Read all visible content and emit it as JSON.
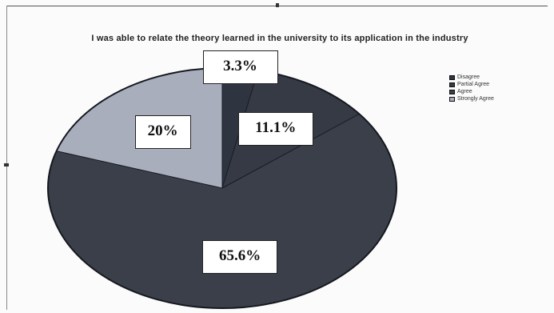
{
  "chart_data": {
    "type": "pie",
    "title": "I was able to relate the theory learned in the university to its application in the industry",
    "categories": [
      "Disagree",
      "Partial Agree",
      "Agree",
      "Strongly Agree"
    ],
    "values": [
      3.3,
      11.1,
      65.6,
      20
    ],
    "data_labels": [
      "3.3%",
      "11.1%",
      "65.6%",
      "20%"
    ],
    "colors": [
      "#2e3440",
      "#353a45",
      "#3a3f4a",
      "#a9aebd"
    ],
    "legend_position": "right",
    "start_angle_deg": 0,
    "direction": "clockwise"
  }
}
